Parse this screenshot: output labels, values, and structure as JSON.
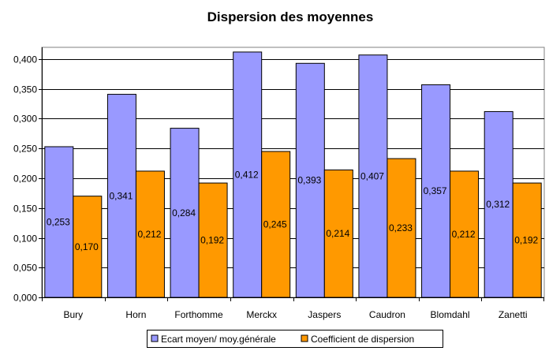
{
  "chart_data": {
    "type": "bar",
    "title": "Dispersion des moyennes",
    "xlabel": "",
    "ylabel": "",
    "ylim": [
      0,
      0.4
    ],
    "y_tick_step": 0.05,
    "y_tick_labels": [
      "0,000",
      "0,050",
      "0,100",
      "0,150",
      "0,200",
      "0,250",
      "0,300",
      "0,350",
      "0,400"
    ],
    "grid": true,
    "legend_position": "bottom",
    "categories": [
      "Bury",
      "Horn",
      "Forthomme",
      "Merckx",
      "Jaspers",
      "Caudron",
      "Blomdahl",
      "Zanetti"
    ],
    "series": [
      {
        "name": "Ecart moyen/ moy.générale",
        "color": "#9999ff",
        "values": [
          0.253,
          0.341,
          0.284,
          0.412,
          0.393,
          0.407,
          0.357,
          0.312
        ],
        "labels": [
          "0,253",
          "0,341",
          "0,284",
          "0,412",
          "0,393",
          "0,407",
          "0,357",
          "0,312"
        ]
      },
      {
        "name": "Coefficient de dispersion",
        "color": "#ff9900",
        "values": [
          0.17,
          0.212,
          0.192,
          0.245,
          0.214,
          0.233,
          0.212,
          0.192
        ],
        "labels": [
          "0,170",
          "0,212",
          "0,192",
          "0,245",
          "0,214",
          "0,233",
          "0,212",
          "0,192"
        ]
      }
    ]
  }
}
